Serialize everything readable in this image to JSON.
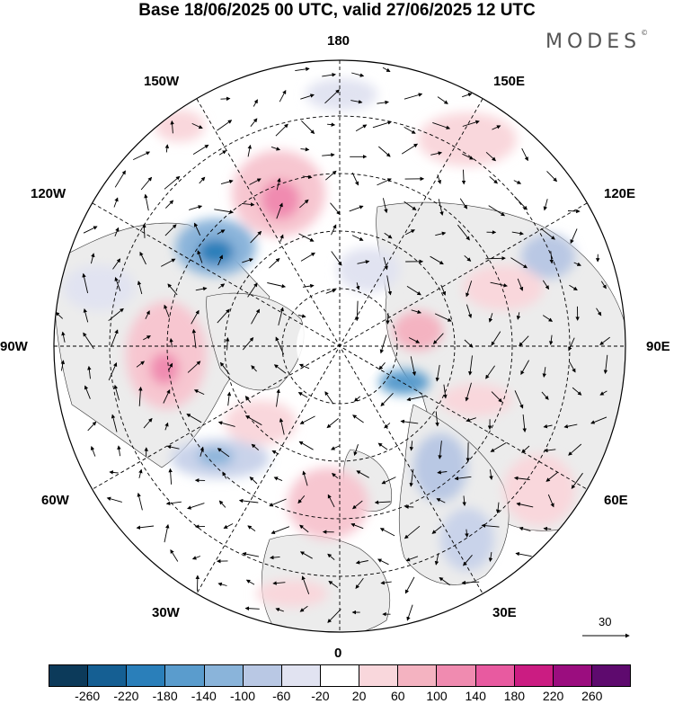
{
  "title": "Base 18/06/2025 00 UTC, valid 27/06/2025 12 UTC",
  "logo": "MODES",
  "logo_mark": "©",
  "meridian_labels": {
    "top": "180",
    "bottom": "0",
    "left": "90W",
    "right": "90E",
    "upper_left_1": "150W",
    "upper_left_2": "120W",
    "upper_right_1": "150E",
    "upper_right_2": "120E",
    "lower_left_1": "60W",
    "lower_left_2": "30W",
    "lower_right_1": "60E",
    "lower_right_2": "30E"
  },
  "reference_vector": "30",
  "colorbar": {
    "colors": [
      "#0c3a5a",
      "#155f93",
      "#2a7fba",
      "#5a9ccd",
      "#8ab4da",
      "#b9c8e4",
      "#e1e3f1",
      "#ffffff",
      "#f9d7dc",
      "#f4b3c1",
      "#f08bb0",
      "#e85aa0",
      "#cb1c82",
      "#9b0d7f",
      "#5e0a6e"
    ],
    "ticks": [
      "-260",
      "-220",
      "-180",
      "-140",
      "-100",
      "-60",
      "-20",
      "20",
      "60",
      "100",
      "140",
      "180",
      "220",
      "260"
    ]
  }
}
